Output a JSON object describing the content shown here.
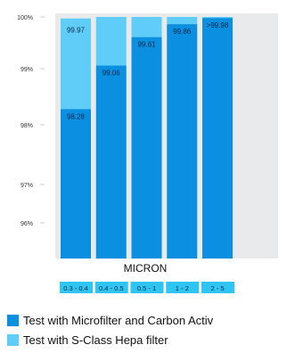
{
  "chart_data": {
    "type": "bar",
    "stacked": true,
    "categories": [
      "0.3 - 0.4",
      "0.4 - 0.5",
      "0.5 - 1",
      "1 - 2",
      "2 - 5"
    ],
    "xlabel": "MICRON",
    "ylabel": "",
    "title": "",
    "y_ticks": [
      "100%",
      "99%",
      "98%",
      "97%",
      "96%"
    ],
    "series": [
      {
        "name": "Test with Microfilter and Carbon Activ",
        "color": "#0b8fe0",
        "values": [
          98.28,
          99.06,
          99.61,
          99.86,
          99.98
        ],
        "labels": [
          "98.28",
          "99.06",
          "99.61",
          "99.86",
          ">99.98"
        ]
      },
      {
        "name": "Test with S-Class Hepa filter",
        "color": "#5fcdf7",
        "values": [
          99.97,
          100,
          100,
          100,
          100
        ],
        "labels": [
          "99.97",
          "",
          "",
          "",
          ""
        ]
      }
    ],
    "grid": false,
    "legend_position": "bottom-left"
  }
}
